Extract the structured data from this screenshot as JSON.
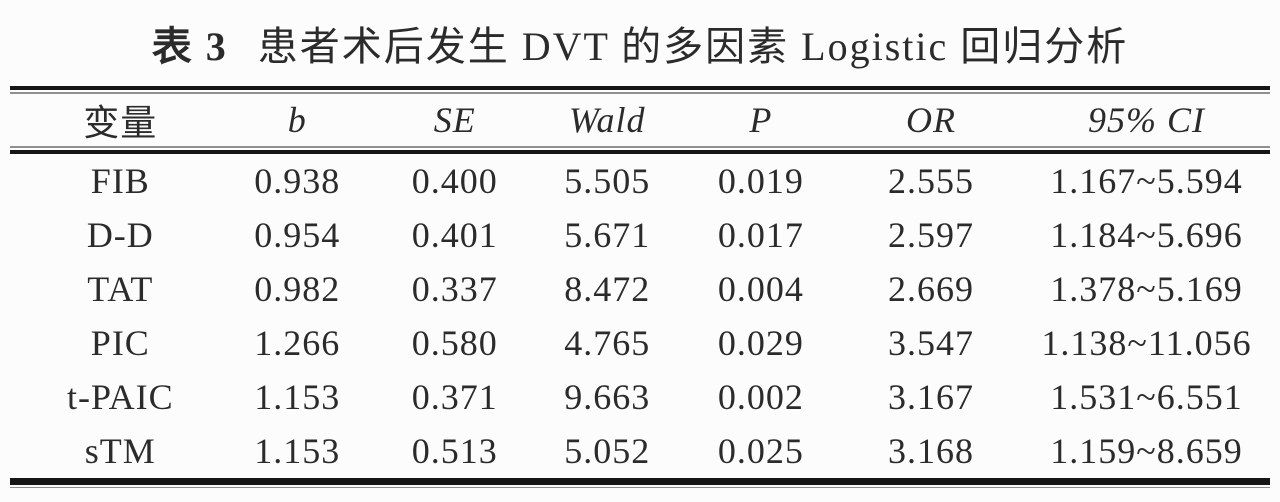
{
  "caption": {
    "label": "表 3",
    "text": "患者术后发生 DVT 的多因素 Logistic 回归分析"
  },
  "table": {
    "columns": [
      "变量",
      "b",
      "SE",
      "Wald",
      "P",
      "OR",
      "95% CI"
    ],
    "rows": [
      [
        "FIB",
        "0.938",
        "0.400",
        "5.505",
        "0.019",
        "2.555",
        "1.167~5.594"
      ],
      [
        "D-D",
        "0.954",
        "0.401",
        "5.671",
        "0.017",
        "2.597",
        "1.184~5.696"
      ],
      [
        "TAT",
        "0.982",
        "0.337",
        "8.472",
        "0.004",
        "2.669",
        "1.378~5.169"
      ],
      [
        "PIC",
        "1.266",
        "0.580",
        "4.765",
        "0.029",
        "3.547",
        "1.138~11.056"
      ],
      [
        "t-PAIC",
        "1.153",
        "0.371",
        "9.663",
        "0.002",
        "3.167",
        "1.531~6.551"
      ],
      [
        "sTM",
        "1.153",
        "0.513",
        "5.052",
        "0.025",
        "3.168",
        "1.159~8.659"
      ]
    ]
  },
  "colors": {
    "text": "#2b2b2b",
    "rule_dark": "#161616",
    "rule_light": "#8f8f8f",
    "background": "#fcfcfc"
  }
}
